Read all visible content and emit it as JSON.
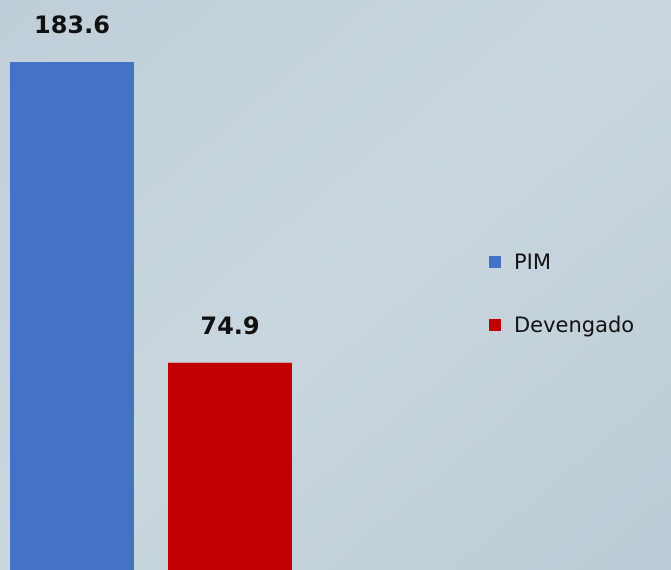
{
  "chart_data": {
    "type": "bar",
    "categories": [
      null
    ],
    "series": [
      {
        "name": "PIM",
        "color": "#4472c4",
        "values": [
          183.6
        ]
      },
      {
        "name": "Devengado",
        "color": "#c00000",
        "values": [
          74.9
        ]
      }
    ],
    "legend": "right"
  }
}
